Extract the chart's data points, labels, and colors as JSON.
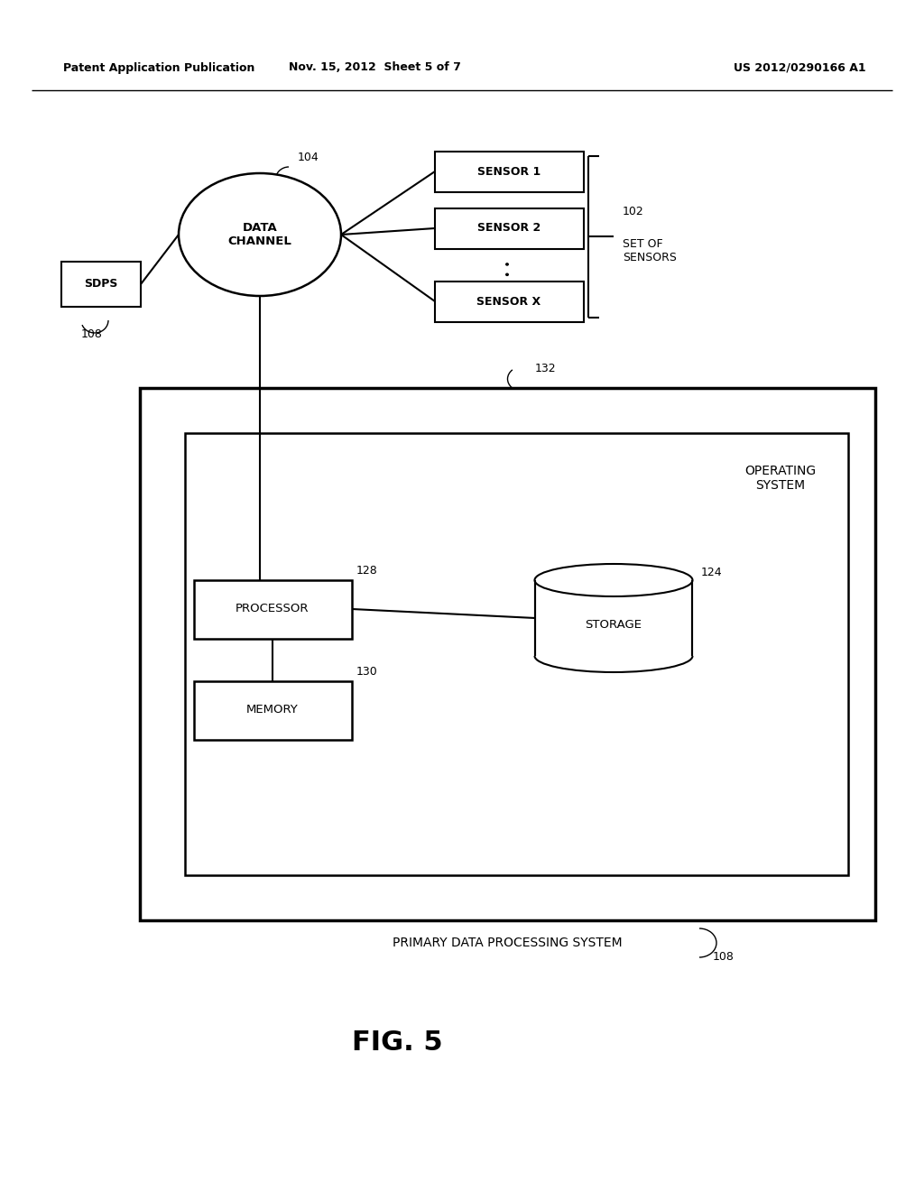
{
  "bg_color": "#ffffff",
  "header_left": "Patent Application Publication",
  "header_mid": "Nov. 15, 2012  Sheet 5 of 7",
  "header_right": "US 2012/0290166 A1",
  "fig_label": "FIG. 5",
  "data_channel_label": "DATA\nCHANNEL",
  "data_channel_ref": "104",
  "sensor1": "SENSOR 1",
  "sensor2": "SENSOR 2",
  "sensorX": "SENSOR X",
  "sensors_ref": "102",
  "sensors_group_label": "SET OF\nSENSORS",
  "sdps_label": "SDPS",
  "sdps_ref": "108",
  "outer_box_label": "PRIMARY DATA PROCESSING SYSTEM",
  "outer_box_ref": "108",
  "inner_box_label": "OPERATING\nSYSTEM",
  "inner_box_ref": "132",
  "processor_label": "PROCESSOR",
  "processor_ref": "128",
  "memory_label": "MEMORY",
  "memory_ref": "130",
  "storage_label": "STORAGE",
  "storage_ref": "124"
}
